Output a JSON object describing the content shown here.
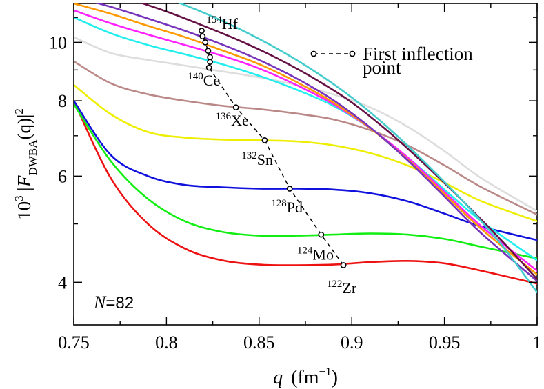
{
  "chart_data": {
    "type": "line",
    "ylabel_prefix": "10",
    "ylabel_exp": "3",
    "ylabel_body": "|F",
    "ylabel_sub": "DWBA",
    "ylabel_paren": "(q)|",
    "ylabel_sq": "2",
    "xlabel_q": "q",
    "xlabel_unit": "(fm",
    "xlabel_exp": "−1",
    "xlabel_close": ")",
    "annotation_N": "N",
    "annotation_val": "=82",
    "legend_line1": "First inflection",
    "legend_line2": "point",
    "xlim": [
      0.75,
      1.0
    ],
    "ylim": [
      3.4,
      11.6
    ],
    "y_scale": "log",
    "x_ticks": [
      {
        "value": 0.75,
        "label": "0.75"
      },
      {
        "value": 0.8,
        "label": "0.8"
      },
      {
        "value": 0.85,
        "label": "0.85"
      },
      {
        "value": 0.9,
        "label": "0.9"
      },
      {
        "value": 0.95,
        "label": "0.95"
      },
      {
        "value": 1.0,
        "label": "1"
      }
    ],
    "x_minor_ticks": [
      0.775,
      0.825,
      0.875,
      0.925,
      0.975
    ],
    "y_ticks": [
      {
        "value": 4,
        "label": "4"
      },
      {
        "value": 6,
        "label": "6"
      },
      {
        "value": 8,
        "label": "8"
      },
      {
        "value": 10,
        "label": "10"
      }
    ],
    "y_minor_ticks": [
      5,
      7,
      9,
      11
    ],
    "series": [
      {
        "name": "122Zr",
        "color": "#ee1111",
        "x": [
          0.75,
          0.77,
          0.79,
          0.81,
          0.83,
          0.85,
          0.87,
          0.89,
          0.91,
          0.93,
          0.95,
          0.97,
          1.0
        ],
        "y": [
          8.0,
          5.95,
          5.0,
          4.55,
          4.35,
          4.28,
          4.27,
          4.28,
          4.32,
          4.34,
          4.3,
          4.18,
          3.98
        ]
      },
      {
        "name": "124Mo",
        "color": "#11ee11",
        "x": [
          0.75,
          0.77,
          0.79,
          0.81,
          0.83,
          0.85,
          0.87,
          0.89,
          0.91,
          0.93,
          0.95,
          0.97,
          1.0
        ],
        "y": [
          7.9,
          6.35,
          5.5,
          5.05,
          4.85,
          4.78,
          4.78,
          4.8,
          4.82,
          4.8,
          4.72,
          4.58,
          4.38
        ]
      },
      {
        "name": "128Pd",
        "color": "#1111dd",
        "x": [
          0.75,
          0.77,
          0.79,
          0.81,
          0.83,
          0.85,
          0.87,
          0.89,
          0.91,
          0.93,
          0.95,
          0.97,
          1.0
        ],
        "y": [
          8.0,
          6.5,
          6.0,
          5.8,
          5.75,
          5.72,
          5.72,
          5.7,
          5.62,
          5.45,
          5.2,
          4.95,
          4.7
        ]
      },
      {
        "name": "132Sn",
        "color": "#eeee00",
        "x": [
          0.75,
          0.77,
          0.79,
          0.81,
          0.83,
          0.85,
          0.87,
          0.89,
          0.91,
          0.93,
          0.95,
          0.97,
          1.0
        ],
        "y": [
          8.5,
          7.6,
          7.1,
          6.95,
          6.9,
          6.88,
          6.85,
          6.75,
          6.55,
          6.25,
          5.85,
          5.45,
          5.05
        ]
      },
      {
        "name": "136Xe",
        "color": "#bb8888",
        "x": [
          0.75,
          0.77,
          0.79,
          0.81,
          0.83,
          0.85,
          0.87,
          0.89,
          0.91,
          0.93,
          0.95,
          0.97,
          1.0
        ],
        "y": [
          9.3,
          8.55,
          8.2,
          8.0,
          7.85,
          7.75,
          7.62,
          7.45,
          7.15,
          6.75,
          6.25,
          5.75,
          5.18
        ]
      },
      {
        "name": "light-gray",
        "color": "#dddddd",
        "x": [
          0.75,
          0.77,
          0.79,
          0.81,
          0.83,
          0.85,
          0.87,
          0.89,
          0.91,
          0.93,
          0.95,
          0.97,
          1.0
        ],
        "y": [
          10.2,
          9.6,
          9.35,
          9.15,
          8.95,
          8.75,
          8.5,
          8.2,
          7.8,
          7.25,
          6.6,
          5.95,
          5.25
        ]
      },
      {
        "name": "140Ce",
        "color": "#22eeee",
        "x": [
          0.75,
          0.77,
          0.79,
          0.81,
          0.83,
          0.85,
          0.87,
          0.89,
          0.91,
          0.93,
          0.95,
          0.97,
          1.0
        ],
        "y": [
          11.0,
          10.35,
          9.9,
          9.55,
          9.2,
          8.8,
          8.35,
          7.85,
          7.2,
          6.45,
          5.7,
          5.05,
          4.35
        ]
      },
      {
        "name": "magenta",
        "color": "#ff22ff",
        "x": [
          0.75,
          0.77,
          0.79,
          0.81,
          0.83,
          0.85,
          0.87,
          0.89,
          0.91,
          0.93,
          0.95,
          0.97,
          1.0
        ],
        "y": [
          11.3,
          10.75,
          10.3,
          9.9,
          9.5,
          9.05,
          8.5,
          7.9,
          7.2,
          6.45,
          5.65,
          4.95,
          4.18
        ]
      },
      {
        "name": "orange",
        "color": "#ff9900",
        "x": [
          0.75,
          0.77,
          0.79,
          0.81,
          0.83,
          0.85,
          0.87,
          0.89,
          0.91,
          0.93,
          0.95,
          0.97,
          1.0
        ],
        "y": [
          11.6,
          11.15,
          10.65,
          10.2,
          9.7,
          9.2,
          8.6,
          7.95,
          7.2,
          6.4,
          5.6,
          4.9,
          4.12
        ]
      },
      {
        "name": "purple",
        "color": "#7733bb",
        "x": [
          0.75,
          0.77,
          0.79,
          0.81,
          0.83,
          0.85,
          0.87,
          0.89,
          0.91,
          0.93,
          0.95,
          0.97,
          1.0
        ],
        "y": [
          11.9,
          11.45,
          10.95,
          10.45,
          9.92,
          9.35,
          8.72,
          8.02,
          7.22,
          6.38,
          5.55,
          4.82,
          4.02
        ]
      },
      {
        "name": "154Hf",
        "color": "#661144",
        "x": [
          0.78,
          0.8,
          0.82,
          0.84,
          0.86,
          0.88,
          0.9,
          0.92,
          0.94,
          0.96,
          0.98,
          1.0
        ],
        "y": [
          11.8,
          11.25,
          10.65,
          10.05,
          9.4,
          8.7,
          7.95,
          7.1,
          6.25,
          5.45,
          4.72,
          4.05
        ]
      },
      {
        "name": "turquoise",
        "color": "#44cccc",
        "x": [
          0.8,
          0.82,
          0.84,
          0.86,
          0.88,
          0.9,
          0.92,
          0.94,
          0.96,
          0.98,
          1.0
        ],
        "y": [
          11.85,
          11.2,
          10.5,
          9.75,
          8.95,
          8.1,
          7.2,
          6.3,
          5.45,
          4.65,
          3.85
        ]
      }
    ],
    "inflection_points": {
      "x": [
        0.8955,
        0.8835,
        0.8665,
        0.853,
        0.8375,
        0.823,
        0.8235,
        0.8235,
        0.8225,
        0.821,
        0.8195,
        0.819
      ],
      "y": [
        4.27,
        4.8,
        5.72,
        6.88,
        7.8,
        9.08,
        9.28,
        9.45,
        9.68,
        10.0,
        10.23,
        10.45
      ]
    },
    "nucleus_labels": [
      {
        "mass": "154",
        "symbol": "Hf",
        "x": 0.8215,
        "y": 10.52
      },
      {
        "mass": "140",
        "symbol": "Ce",
        "x": 0.8115,
        "y": 8.48
      },
      {
        "mass": "136",
        "symbol": "Xe",
        "x": 0.8265,
        "y": 7.28
      },
      {
        "mass": "132",
        "symbol": "Sn",
        "x": 0.8405,
        "y": 6.26
      },
      {
        "mass": "128",
        "symbol": "Pd",
        "x": 0.8565,
        "y": 5.22
      },
      {
        "mass": "124",
        "symbol": "Mo",
        "x": 0.8705,
        "y": 4.36
      },
      {
        "mass": "122",
        "symbol": "Zr",
        "x": 0.8865,
        "y": 3.84
      }
    ]
  }
}
